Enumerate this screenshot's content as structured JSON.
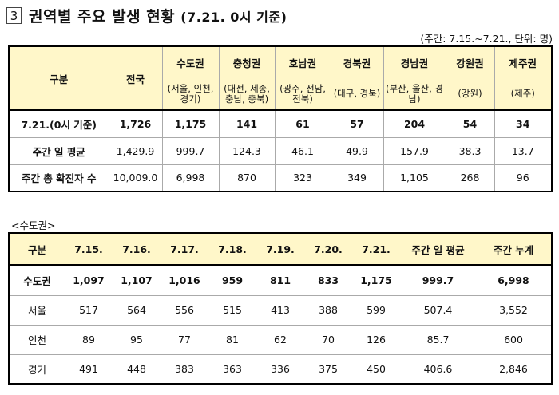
{
  "header": {
    "section_number": "3",
    "title": "권역별 주요 발생 현황",
    "title_sub": "(7.21. 0시 기준)",
    "unit_note": "(주간: 7.15.~7.21., 단위: 명)"
  },
  "regional_table": {
    "corner_label": "구분",
    "nation_label": "전국",
    "regions": [
      {
        "name": "수도권",
        "sub": "(서울, 인천, 경기)"
      },
      {
        "name": "충청권",
        "sub": "(대전, 세종, 충남, 충북)"
      },
      {
        "name": "호남권",
        "sub": "(광주, 전남, 전북)"
      },
      {
        "name": "경북권",
        "sub": "(대구, 경북)"
      },
      {
        "name": "경남권",
        "sub": "(부산, 울산, 경남)"
      },
      {
        "name": "강원권",
        "sub": "(강원)"
      },
      {
        "name": "제주권",
        "sub": "(제주)"
      }
    ],
    "rows": [
      {
        "label": "7.21.(0시 기준)",
        "values": [
          "1,726",
          "1,175",
          "141",
          "61",
          "57",
          "204",
          "54",
          "34"
        ]
      },
      {
        "label": "주간 일 평균",
        "values": [
          "1,429.9",
          "999.7",
          "124.3",
          "46.1",
          "49.9",
          "157.9",
          "38.3",
          "13.7"
        ]
      },
      {
        "label": "주간 총 확진자 수",
        "values": [
          "10,009.0",
          "6,998",
          "870",
          "323",
          "349",
          "1,105",
          "268",
          "96"
        ]
      }
    ]
  },
  "capital_section_label": "<수도권>",
  "capital_table": {
    "columns": [
      "구분",
      "7.15.",
      "7.16.",
      "7.17.",
      "7.18.",
      "7.19.",
      "7.20.",
      "7.21.",
      "주간 일 평균",
      "주간 누계"
    ],
    "rows": [
      {
        "label": "수도권",
        "values": [
          "1,097",
          "1,107",
          "1,016",
          "959",
          "811",
          "833",
          "1,175",
          "999.7",
          "6,998"
        ]
      },
      {
        "label": "서울",
        "values": [
          "517",
          "564",
          "556",
          "515",
          "413",
          "388",
          "599",
          "507.4",
          "3,552"
        ]
      },
      {
        "label": "인천",
        "values": [
          "89",
          "95",
          "77",
          "81",
          "62",
          "70",
          "126",
          "85.7",
          "600"
        ]
      },
      {
        "label": "경기",
        "values": [
          "491",
          "448",
          "383",
          "363",
          "336",
          "375",
          "450",
          "406.6",
          "2,846"
        ]
      }
    ]
  }
}
